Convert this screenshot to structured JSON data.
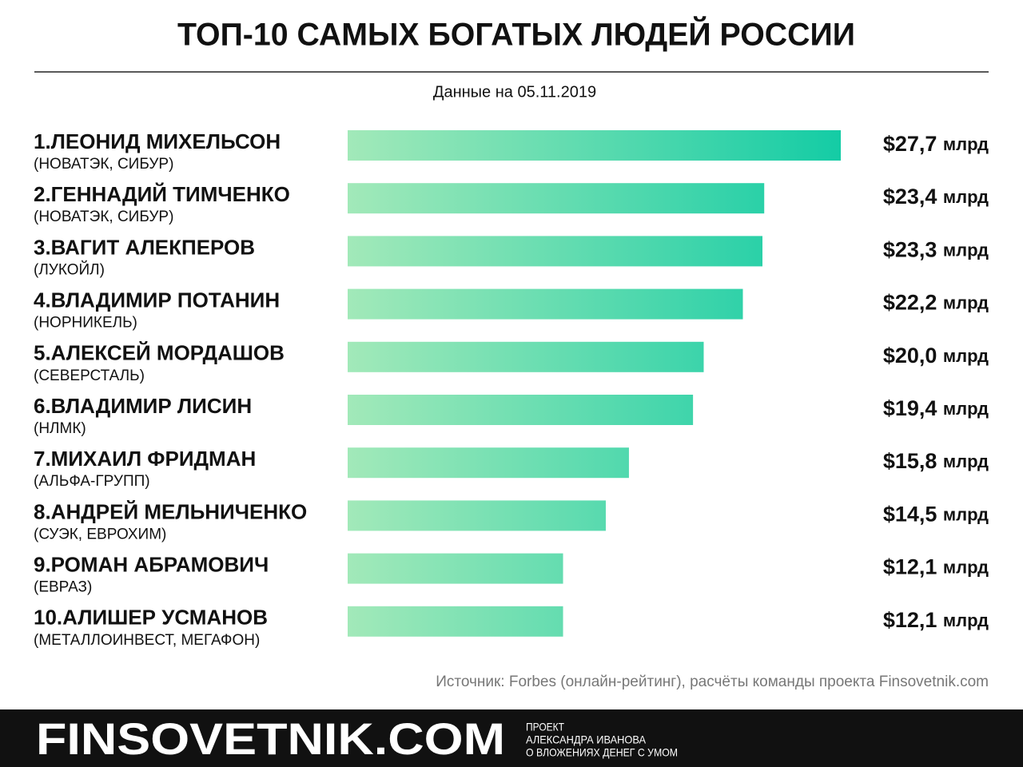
{
  "chart_data": {
    "type": "bar",
    "title": "ТОП-10 САМЫХ БОГАТЫХ ЛЮДЕЙ РОССИИ",
    "subtitle": "Данные на 05.11.2019",
    "categories": [
      "1.ЛЕОНИД МИХЕЛЬСОН",
      "2.ГЕННАДИЙ ТИМЧЕНКО",
      "3.ВАГИТ АЛЕКПЕРОВ",
      "4.ВЛАДИМИР ПОТАНИН",
      "5.АЛЕКСЕЙ МОРДАШОВ",
      "6.ВЛАДИМИР ЛИСИН",
      "7.МИХАИЛ ФРИДМАН",
      "8.АНДРЕЙ МЕЛЬНИЧЕНКО",
      "9.РОМАН АБРАМОВИЧ",
      "10.АЛИШЕР УСМАНОВ"
    ],
    "companies": [
      "(НОВАТЭК, СИБУР)",
      "(НОВАТЭК, СИБУР)",
      "(ЛУКОЙЛ)",
      "(НОРНИКЕЛЬ)",
      "(СЕВЕРСТАЛЬ)",
      "(НЛМК)",
      "(АЛЬФА-ГРУПП)",
      "(СУЭК, ЕВРОХИМ)",
      "(ЕВРАЗ)",
      "(МЕТАЛЛОИНВЕСТ, МЕГАФОН)"
    ],
    "values": [
      27.7,
      23.4,
      23.3,
      22.2,
      20.0,
      19.4,
      15.8,
      14.5,
      12.1,
      12.1
    ],
    "value_labels": [
      "$27,7 млрд",
      "$23,4 млрд",
      "$23,3 млрд",
      "$22,2 млрд",
      "$20,0 млрд",
      "$19,4 млрд",
      "$15,8 млрд",
      "$14,5 млрд",
      "$12,1 млрд",
      "$12,1 млрд"
    ],
    "colors": [
      "#a2e9b9",
      "#14cca5"
    ],
    "source": "Источник: Forbes (онлайн-рейтинг), расчёты команды проекта Finsovetnik.com"
  },
  "footer": {
    "brand": "FINSOVETNIK.COM",
    "tagline": [
      "ПРОЕКТ",
      "АЛЕКСАНДРА ИВАНОВА",
      "О ВЛОЖЕНИЯХ ДЕНЕГ С УМОМ"
    ]
  }
}
